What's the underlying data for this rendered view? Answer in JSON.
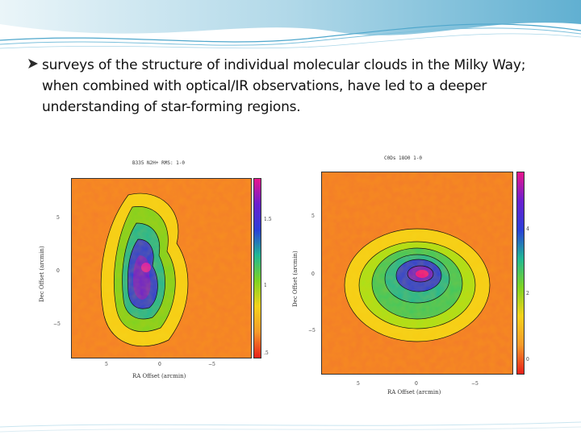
{
  "slide": {
    "bullet_text": "surveys of the structure of individual molecular clouds in the Milky Way; when combined with optical/IR observations, have led to a deeper understanding of star-forming regions."
  },
  "figures": {
    "left": {
      "title": "B335 N2H+ RMS: 1-0",
      "xlabel": "RA Offset (arcmin)",
      "ylabel": "Dec Offset (arcmin)",
      "x_ticks": [
        "5",
        "0",
        "−5"
      ],
      "y_ticks": [
        "5",
        "0",
        "−5"
      ],
      "cbar_ticks": [
        "1.5",
        "1",
        ".5"
      ]
    },
    "right": {
      "title": "C0Ds 18O0 1-0",
      "xlabel": "RA Offset (arcmin)",
      "ylabel": "Dec Offset (arcmin)",
      "x_ticks": [
        "5",
        "0",
        "−5"
      ],
      "y_ticks": [
        "5",
        "0",
        "−5"
      ],
      "cbar_ticks": [
        "4",
        "2",
        "0"
      ]
    }
  },
  "colors": {
    "header_blue": "#4fa7cc",
    "bullet_arrow": "#2b2b2b"
  }
}
